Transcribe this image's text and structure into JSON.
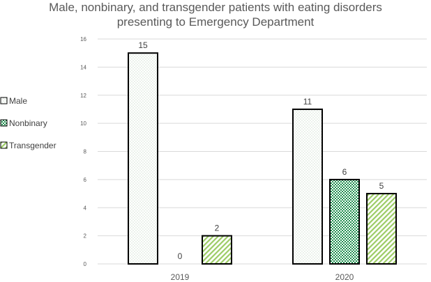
{
  "chart_data": {
    "type": "bar",
    "title": "Male, nonbinary, and transgender patients with eating disorders presenting to Emergency Department",
    "title_lines": [
      "Male, nonbinary, and transgender patients with eating disorders",
      "presenting to Emergency Department"
    ],
    "xlabel": "",
    "ylabel": "",
    "categories": [
      "2019",
      "2020"
    ],
    "series": [
      {
        "name": "Male",
        "values": [
          15,
          11
        ],
        "pattern": "dots",
        "color": "#c6dcc6"
      },
      {
        "name": "Nonbinary",
        "values": [
          0,
          6
        ],
        "pattern": "checker",
        "color": "#1e8f4e"
      },
      {
        "name": "Transgender",
        "values": [
          2,
          5
        ],
        "pattern": "diagonal",
        "color": "#9ccc65"
      }
    ],
    "ylim": [
      0,
      16
    ],
    "yticks": [
      0,
      2,
      4,
      6,
      8,
      10,
      12,
      14,
      16
    ],
    "grid": true,
    "legend_position": "left",
    "data_labels": true
  }
}
